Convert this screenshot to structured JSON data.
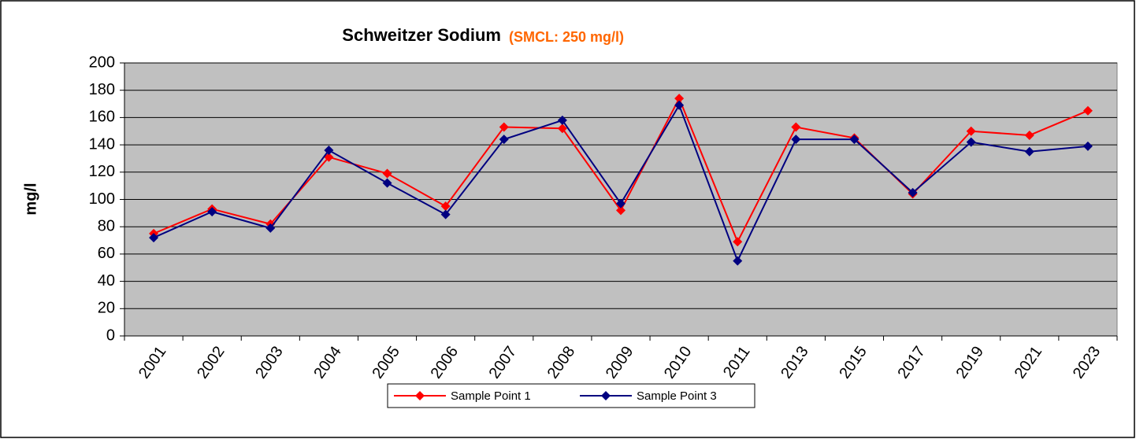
{
  "chart_data": {
    "type": "line",
    "title": "Schweitzer Sodium",
    "subtitle": "(SMCL: 250 mg/l)",
    "ylabel": "mg/l",
    "categories": [
      "2001",
      "2002",
      "2003",
      "2004",
      "2005",
      "2006",
      "2007",
      "2008",
      "2009",
      "2010",
      "2011",
      "2013",
      "2015",
      "2017",
      "2019",
      "2021",
      "2023"
    ],
    "series": [
      {
        "name": "Sample Point 1",
        "color": "#ff0000",
        "values": [
          75,
          93,
          82,
          131,
          119,
          95,
          153,
          152,
          92,
          174,
          69,
          153,
          145,
          104,
          150,
          147,
          165
        ]
      },
      {
        "name": "Sample Point 3",
        "color": "#000080",
        "values": [
          72,
          91,
          79,
          136,
          112,
          89,
          144,
          158,
          97,
          169,
          55,
          144,
          144,
          105,
          142,
          135,
          139
        ]
      }
    ],
    "ylim": [
      0,
      200
    ],
    "yticks": [
      0,
      20,
      40,
      60,
      80,
      100,
      120,
      140,
      160,
      180,
      200
    ],
    "grid": true,
    "legend": "bottom"
  }
}
